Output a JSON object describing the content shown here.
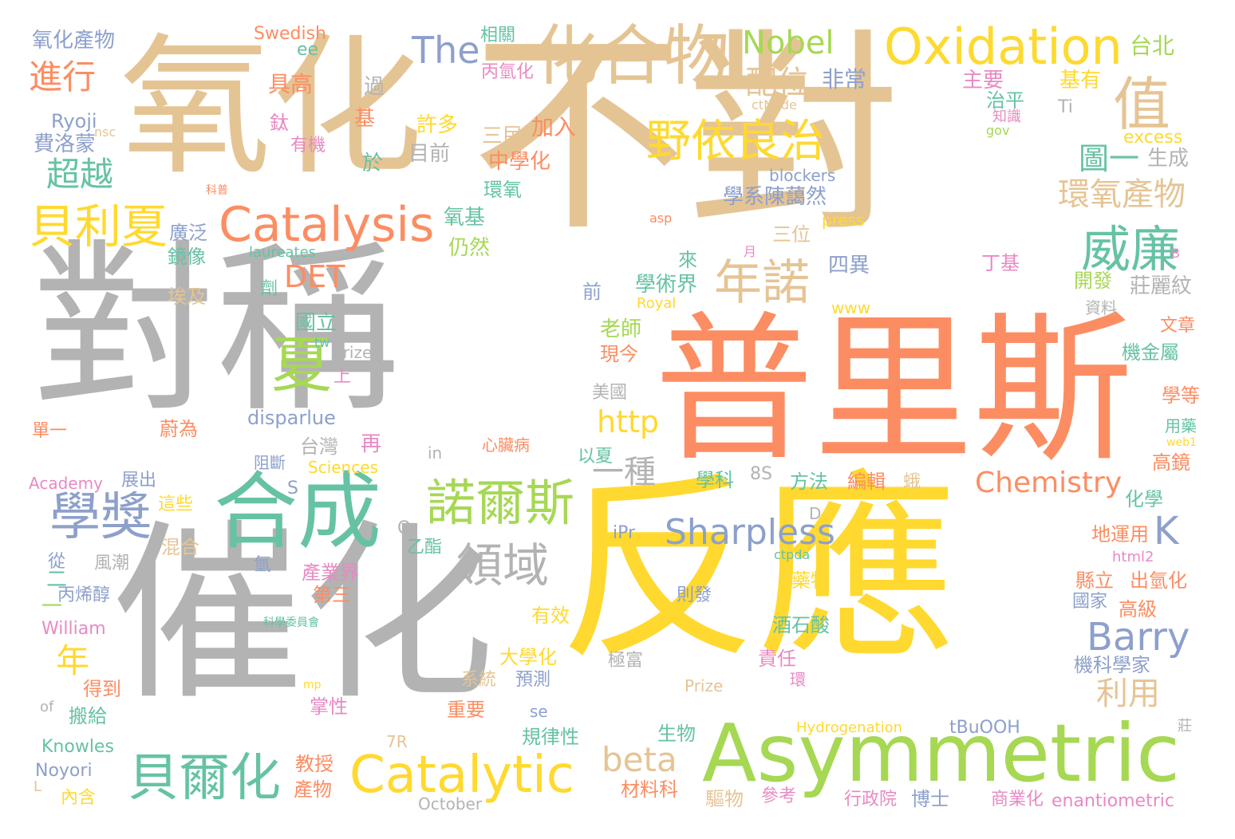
{
  "words": [
    {
      "id": "w001",
      "text": "對稱",
      "color": "#b3b3b3"
    },
    {
      "id": "w002",
      "text": "反應",
      "color": "#ffd92f"
    },
    {
      "id": "w003",
      "text": "不對",
      "color": "#e5c494"
    },
    {
      "id": "w004",
      "text": "催化",
      "color": "#b3b3b3"
    },
    {
      "id": "w005",
      "text": "氧化",
      "color": "#e5c494"
    },
    {
      "id": "w006",
      "text": "普里斯",
      "color": "#fc8d62"
    },
    {
      "id": "w007",
      "text": "合成",
      "color": "#66c2a5"
    },
    {
      "id": "w008",
      "text": "化合物",
      "color": "#e5c494"
    },
    {
      "id": "w009",
      "text": "Asymmetric",
      "color": "#a6d854"
    },
    {
      "id": "w010",
      "text": "Oxidation",
      "color": "#ffd92f"
    },
    {
      "id": "w011",
      "text": "Catalysis",
      "color": "#fc8d62"
    },
    {
      "id": "w012",
      "text": "Catalytic",
      "color": "#ffd92f"
    },
    {
      "id": "w013",
      "text": "值",
      "color": "#e5c494"
    },
    {
      "id": "w014",
      "text": "威廉",
      "color": "#66c2a5"
    },
    {
      "id": "w015",
      "text": "野依良治",
      "color": "#ffd92f"
    },
    {
      "id": "w016",
      "text": "年諾",
      "color": "#e5c494"
    },
    {
      "id": "w017",
      "text": "夏",
      "color": "#a6d854"
    },
    {
      "id": "w018",
      "text": "學獎",
      "color": "#8da0cb"
    },
    {
      "id": "w019",
      "text": "貝利夏",
      "color": "#ffd92f"
    },
    {
      "id": "w020",
      "text": "諾爾斯",
      "color": "#a6d854"
    },
    {
      "id": "w021",
      "text": "領域",
      "color": "#b3b3b3"
    },
    {
      "id": "w022",
      "text": "貝爾化",
      "color": "#66c2a5"
    },
    {
      "id": "w023",
      "text": "Barry",
      "color": "#8da0cb"
    },
    {
      "id": "w024",
      "text": "Sharpless",
      "color": "#8da0cb"
    },
    {
      "id": "w025",
      "text": "Nobel",
      "color": "#a6d854"
    },
    {
      "id": "w026",
      "text": "The",
      "color": "#8da0cb"
    },
    {
      "id": "w027",
      "text": "進行",
      "color": "#fc8d62"
    },
    {
      "id": "w028",
      "text": "超越",
      "color": "#66c2a5"
    },
    {
      "id": "w029",
      "text": "配位",
      "color": "#e5c494"
    },
    {
      "id": "w030",
      "text": "環氧產物",
      "color": "#e5c494"
    },
    {
      "id": "w031",
      "text": "圖一",
      "color": "#66c2a5"
    },
    {
      "id": "w032",
      "text": "DET",
      "color": "#fc8d62"
    },
    {
      "id": "w033",
      "text": "beta",
      "color": "#e5c494"
    },
    {
      "id": "w034",
      "text": "Chemistry",
      "color": "#fc8d62"
    },
    {
      "id": "w035",
      "text": "一種",
      "color": "#b3b3b3"
    },
    {
      "id": "w036",
      "text": "http",
      "color": "#ffd92f"
    },
    {
      "id": "w037",
      "text": "K",
      "color": "#8da0cb"
    },
    {
      "id": "w038",
      "text": "年",
      "color": "#ffd92f"
    },
    {
      "id": "w039",
      "text": "利用",
      "color": "#e5c494"
    },
    {
      "id": "w040",
      "text": "氧化產物",
      "color": "#8da0cb"
    },
    {
      "id": "w041",
      "text": "Swedish",
      "color": "#fc8d62"
    },
    {
      "id": "w042",
      "text": "相關",
      "color": "#66c2a5"
    },
    {
      "id": "w043",
      "text": "台北",
      "color": "#a6d854"
    },
    {
      "id": "w044",
      "text": "ee",
      "color": "#66c2a5"
    },
    {
      "id": "w045",
      "text": "具高",
      "color": "#fc8d62"
    },
    {
      "id": "w046",
      "text": "丙氫化",
      "color": "#e78ac3"
    },
    {
      "id": "w047",
      "text": "過",
      "color": "#b3b3b3"
    },
    {
      "id": "w048",
      "text": "非常",
      "color": "#8da0cb"
    },
    {
      "id": "w049",
      "text": "主要",
      "color": "#e78ac3"
    },
    {
      "id": "w050",
      "text": "基有",
      "color": "#ffd92f"
    },
    {
      "id": "w051",
      "text": "治平",
      "color": "#66c2a5"
    },
    {
      "id": "w052",
      "text": "ctNode",
      "color": "#e5c494"
    },
    {
      "id": "w053",
      "text": "Ti",
      "color": "#b3b3b3"
    },
    {
      "id": "w054",
      "text": "Ryoji",
      "color": "#8da0cb"
    },
    {
      "id": "w055",
      "text": "nsc",
      "color": "#e5c494"
    },
    {
      "id": "w056",
      "text": "鈦",
      "color": "#e78ac3"
    },
    {
      "id": "w057",
      "text": "基",
      "color": "#fc8d62"
    },
    {
      "id": "w058",
      "text": "許多",
      "color": "#ffd92f"
    },
    {
      "id": "w059",
      "text": "加入",
      "color": "#fc8d62"
    },
    {
      "id": "w060",
      "text": "知識",
      "color": "#e78ac3"
    },
    {
      "id": "w061",
      "text": "gov",
      "color": "#a6d854"
    },
    {
      "id": "w062",
      "text": "費洛蒙",
      "color": "#8da0cb"
    },
    {
      "id": "w063",
      "text": "有機",
      "color": "#e78ac3"
    },
    {
      "id": "w064",
      "text": "三民",
      "color": "#e5c494"
    },
    {
      "id": "w065",
      "text": "excess",
      "color": "#ffd92f"
    },
    {
      "id": "w066",
      "text": "目前",
      "color": "#b3b3b3"
    },
    {
      "id": "w067",
      "text": "於",
      "color": "#66c2a5"
    },
    {
      "id": "w068",
      "text": "中學化",
      "color": "#fc8d62"
    },
    {
      "id": "w069",
      "text": "生成",
      "color": "#b3b3b3"
    },
    {
      "id": "w070",
      "text": "blockers",
      "color": "#8da0cb"
    },
    {
      "id": "w071",
      "text": "科普",
      "color": "#fc8d62"
    },
    {
      "id": "w072",
      "text": "環氧",
      "color": "#66c2a5"
    },
    {
      "id": "w073",
      "text": "學系陳藹然",
      "color": "#8da0cb"
    },
    {
      "id": "w074",
      "text": "氧基",
      "color": "#66c2a5"
    },
    {
      "id": "w075",
      "text": "asp",
      "color": "#fc8d62"
    },
    {
      "id": "w076",
      "text": "press",
      "color": "#ffd92f"
    },
    {
      "id": "w077",
      "text": "廣泛",
      "color": "#8da0cb"
    },
    {
      "id": "w078",
      "text": "鏡像",
      "color": "#66c2a5"
    },
    {
      "id": "w079",
      "text": "laureates",
      "color": "#66c2a5"
    },
    {
      "id": "w080",
      "text": "仍然",
      "color": "#a6d854"
    },
    {
      "id": "w081",
      "text": "三位",
      "color": "#e5c494"
    },
    {
      "id": "w082",
      "text": "月",
      "color": "#e78ac3"
    },
    {
      "id": "w083",
      "text": "B",
      "color": "#e78ac3"
    },
    {
      "id": "w084",
      "text": "丁基",
      "color": "#e78ac3"
    },
    {
      "id": "w085",
      "text": "四異",
      "color": "#8da0cb"
    },
    {
      "id": "w086",
      "text": "來",
      "color": "#66c2a5"
    },
    {
      "id": "w087",
      "text": "開發",
      "color": "#a6d854"
    },
    {
      "id": "w088",
      "text": "劑",
      "color": "#66c2a5"
    },
    {
      "id": "w089",
      "text": "學術界",
      "color": "#66c2a5"
    },
    {
      "id": "w090",
      "text": "前",
      "color": "#8da0cb"
    },
    {
      "id": "w091",
      "text": "莊麗紋",
      "color": "#b3b3b3"
    },
    {
      "id": "w092",
      "text": "埃及",
      "color": "#e5c494"
    },
    {
      "id": "w093",
      "text": "Royal",
      "color": "#ffd92f"
    },
    {
      "id": "w094",
      "text": "www",
      "color": "#ffd92f"
    },
    {
      "id": "w095",
      "text": "資料",
      "color": "#b3b3b3"
    },
    {
      "id": "w096",
      "text": "國立",
      "color": "#66c2a5"
    },
    {
      "id": "w097",
      "text": "老師",
      "color": "#a6d854"
    },
    {
      "id": "w098",
      "text": "文章",
      "color": "#fc8d62"
    },
    {
      "id": "w099",
      "text": "tw",
      "color": "#66c2a5"
    },
    {
      "id": "w100",
      "text": "Prize",
      "color": "#b3b3b3"
    },
    {
      "id": "w101",
      "text": "現今",
      "color": "#fc8d62"
    },
    {
      "id": "w102",
      "text": "機金屬",
      "color": "#66c2a5"
    },
    {
      "id": "w103",
      "text": "上",
      "color": "#e78ac3"
    },
    {
      "id": "w104",
      "text": "美國",
      "color": "#b3b3b3"
    },
    {
      "id": "w105",
      "text": "學等",
      "color": "#fc8d62"
    },
    {
      "id": "w106",
      "text": "disparlue",
      "color": "#8da0cb"
    },
    {
      "id": "w107",
      "text": "蔚為",
      "color": "#fc8d62"
    },
    {
      "id": "w108",
      "text": "用藥",
      "color": "#66c2a5"
    },
    {
      "id": "w109",
      "text": "單一",
      "color": "#fc8d62"
    },
    {
      "id": "w110",
      "text": "台灣",
      "color": "#b3b3b3"
    },
    {
      "id": "w111",
      "text": "再",
      "color": "#e78ac3"
    },
    {
      "id": "w112",
      "text": "心臟病",
      "color": "#fc8d62"
    },
    {
      "id": "w113",
      "text": "web1",
      "color": "#ffd92f"
    },
    {
      "id": "w114",
      "text": "in",
      "color": "#b3b3b3"
    },
    {
      "id": "w115",
      "text": "以夏",
      "color": "#66c2a5"
    },
    {
      "id": "w116",
      "text": "高鏡",
      "color": "#fc8d62"
    },
    {
      "id": "w117",
      "text": "阻斷",
      "color": "#8da0cb"
    },
    {
      "id": "w118",
      "text": "Sciences",
      "color": "#ffd92f"
    },
    {
      "id": "w119",
      "text": "8S",
      "color": "#b3b3b3"
    },
    {
      "id": "w120",
      "text": "學科",
      "color": "#66c2a5"
    },
    {
      "id": "w121",
      "text": "方法",
      "color": "#66c2a5"
    },
    {
      "id": "w122",
      "text": "編輯",
      "color": "#fc8d62"
    },
    {
      "id": "w123",
      "text": "Academy",
      "color": "#e78ac3"
    },
    {
      "id": "w124",
      "text": "展出",
      "color": "#8da0cb"
    },
    {
      "id": "w125",
      "text": "S",
      "color": "#8da0cb"
    },
    {
      "id": "w126",
      "text": "蛾",
      "color": "#e5c494"
    },
    {
      "id": "w127",
      "text": "化學",
      "color": "#66c2a5"
    },
    {
      "id": "w128",
      "text": "這些",
      "color": "#ffd92f"
    },
    {
      "id": "w129",
      "text": "D",
      "color": "#b3b3b3"
    },
    {
      "id": "w130",
      "text": "O",
      "color": "#b3b3b3"
    },
    {
      "id": "w131",
      "text": "乙酯",
      "color": "#66c2a5"
    },
    {
      "id": "w132",
      "text": "混合",
      "color": "#e5c494"
    },
    {
      "id": "w133",
      "text": "iPr",
      "color": "#8da0cb"
    },
    {
      "id": "w134",
      "text": "ctpda",
      "color": "#66c2a5"
    },
    {
      "id": "w135",
      "text": "地運用",
      "color": "#fc8d62"
    },
    {
      "id": "w136",
      "text": "html2",
      "color": "#e78ac3"
    },
    {
      "id": "w137",
      "text": "從",
      "color": "#8da0cb"
    },
    {
      "id": "w138",
      "text": "風潮",
      "color": "#b3b3b3"
    },
    {
      "id": "w139",
      "text": "氫",
      "color": "#8da0cb"
    },
    {
      "id": "w140",
      "text": "產業界",
      "color": "#e78ac3"
    },
    {
      "id": "w141",
      "text": "藥物",
      "color": "#ffd92f"
    },
    {
      "id": "w142",
      "text": "縣立",
      "color": "#fc8d62"
    },
    {
      "id": "w143",
      "text": "出氫化",
      "color": "#fc8d62"
    },
    {
      "id": "w144",
      "text": "二",
      "color": "#66c2a5"
    },
    {
      "id": "w145",
      "text": "丙烯醇",
      "color": "#8da0cb"
    },
    {
      "id": "w146",
      "text": "第三",
      "color": "#fc8d62"
    },
    {
      "id": "w147",
      "text": "則發",
      "color": "#8da0cb"
    },
    {
      "id": "w148",
      "text": "國家",
      "color": "#8da0cb"
    },
    {
      "id": "w149",
      "text": "高級",
      "color": "#fc8d62"
    },
    {
      "id": "w150",
      "text": "William",
      "color": "#e78ac3"
    },
    {
      "id": "w151",
      "text": "科學委員會",
      "color": "#66c2a5"
    },
    {
      "id": "w152",
      "text": "酒石酸",
      "color": "#66c2a5"
    },
    {
      "id": "w153",
      "text": "有效",
      "color": "#ffd92f"
    },
    {
      "id": "w154",
      "text": "大學化",
      "color": "#ffd92f"
    },
    {
      "id": "w155",
      "text": "極富",
      "color": "#b3b3b3"
    },
    {
      "id": "w156",
      "text": "責任",
      "color": "#e78ac3"
    },
    {
      "id": "w157",
      "text": "機科學家",
      "color": "#8da0cb"
    },
    {
      "id": "w158",
      "text": "得到",
      "color": "#fc8d62"
    },
    {
      "id": "w159",
      "text": "系統",
      "color": "#e5c494"
    },
    {
      "id": "w160",
      "text": "預測",
      "color": "#8da0cb"
    },
    {
      "id": "w161",
      "text": "環",
      "color": "#e78ac3"
    },
    {
      "id": "w162",
      "text": "mp",
      "color": "#ffd92f"
    },
    {
      "id": "w163",
      "text": "Prize",
      "color": "#e5c494"
    },
    {
      "id": "w164",
      "text": "of",
      "color": "#b3b3b3"
    },
    {
      "id": "w165",
      "text": "掌性",
      "color": "#e78ac3"
    },
    {
      "id": "w166",
      "text": "搬給",
      "color": "#66c2a5"
    },
    {
      "id": "w167",
      "text": "重要",
      "color": "#fc8d62"
    },
    {
      "id": "w168",
      "text": "se",
      "color": "#8da0cb"
    },
    {
      "id": "w169",
      "text": "生物",
      "color": "#66c2a5"
    },
    {
      "id": "w170",
      "text": "Hydrogenation",
      "color": "#ffd92f"
    },
    {
      "id": "w171",
      "text": "tBuOOH",
      "color": "#8da0cb"
    },
    {
      "id": "w172",
      "text": "莊",
      "color": "#b3b3b3"
    },
    {
      "id": "w173",
      "text": "Knowles",
      "color": "#66c2a5"
    },
    {
      "id": "w174",
      "text": "7R",
      "color": "#e5c494"
    },
    {
      "id": "w175",
      "text": "規律性",
      "color": "#66c2a5"
    },
    {
      "id": "w176",
      "text": "Noyori",
      "color": "#8da0cb"
    },
    {
      "id": "w177",
      "text": "教授",
      "color": "#fc8d62"
    },
    {
      "id": "w178",
      "text": "L",
      "color": "#e5c494"
    },
    {
      "id": "w179",
      "text": "產物",
      "color": "#fc8d62"
    },
    {
      "id": "w180",
      "text": "材料科",
      "color": "#fc8d62"
    },
    {
      "id": "w181",
      "text": "驅物",
      "color": "#e5c494"
    },
    {
      "id": "w182",
      "text": "參考",
      "color": "#e78ac3"
    },
    {
      "id": "w183",
      "text": "行政院",
      "color": "#e78ac3"
    },
    {
      "id": "w184",
      "text": "博士",
      "color": "#8da0cb"
    },
    {
      "id": "w185",
      "text": "商業化",
      "color": "#e78ac3"
    },
    {
      "id": "w186",
      "text": "enantiometric",
      "color": "#e78ac3"
    },
    {
      "id": "w187",
      "text": "內含",
      "color": "#ffd92f"
    },
    {
      "id": "w188",
      "text": "October",
      "color": "#b3b3b3"
    },
    {
      "id": "w189",
      "text": "一",
      "color": "#a6d854"
    }
  ]
}
